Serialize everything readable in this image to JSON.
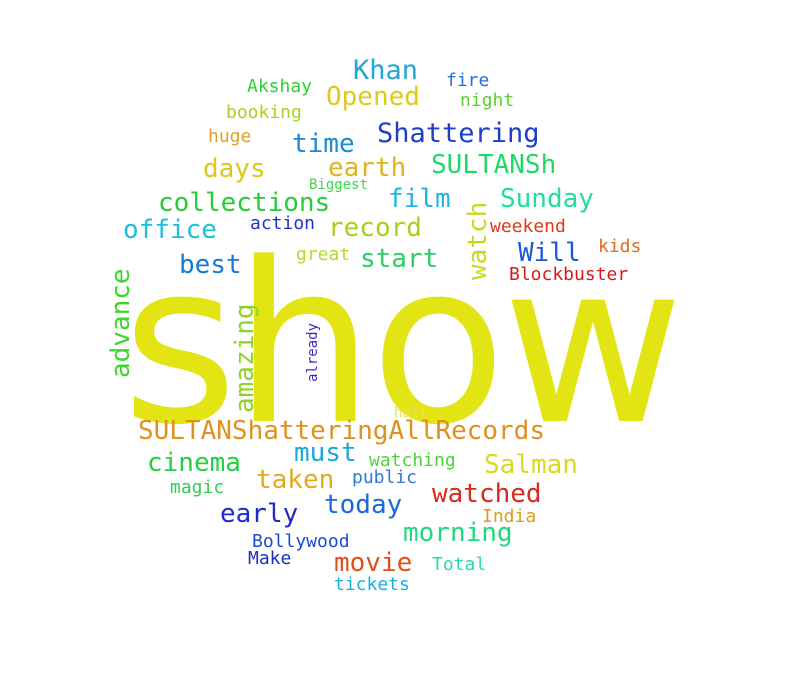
{
  "words": [
    {
      "text": "show",
      "color": "#e2e414"
    },
    {
      "text": "Khan",
      "color": "#1fa8d8"
    },
    {
      "text": "fire",
      "color": "#2a6fd6"
    },
    {
      "text": "Akshay",
      "color": "#2ad232"
    },
    {
      "text": "Opened",
      "color": "#dccb1a"
    },
    {
      "text": "night",
      "color": "#5ad22c"
    },
    {
      "text": "booking",
      "color": "#a6d41e"
    },
    {
      "text": "huge",
      "color": "#e2a21c"
    },
    {
      "text": "time",
      "color": "#1a8ad6"
    },
    {
      "text": "Shattering",
      "color": "#1f3ec8"
    },
    {
      "text": "days",
      "color": "#dcc81a"
    },
    {
      "text": "earth",
      "color": "#e0b21c"
    },
    {
      "text": "SULTANSh",
      "color": "#20d868"
    },
    {
      "text": "Biggest",
      "color": "#3ad84a"
    },
    {
      "text": "collections",
      "color": "#28cc3a"
    },
    {
      "text": "film",
      "color": "#1ab8dc"
    },
    {
      "text": "Sunday",
      "color": "#22dca0"
    },
    {
      "text": "watch",
      "color": "#c8d81c"
    },
    {
      "text": "office",
      "color": "#1ac0dc"
    },
    {
      "text": "action",
      "color": "#2232c8"
    },
    {
      "text": "record",
      "color": "#a6d01c"
    },
    {
      "text": "weekend",
      "color": "#dc3a1a"
    },
    {
      "text": "Will",
      "color": "#1a5ad6"
    },
    {
      "text": "best",
      "color": "#1a7ad6"
    },
    {
      "text": "great",
      "color": "#b0da30"
    },
    {
      "text": "start",
      "color": "#28d064"
    },
    {
      "text": "kids",
      "color": "#e46a1a"
    },
    {
      "text": "advance",
      "color": "#3ad82a"
    },
    {
      "text": "Blockbuster",
      "color": "#d61a1a"
    },
    {
      "text": "amazing",
      "color": "#8ed428"
    },
    {
      "text": "already",
      "color": "#3a2ac8"
    },
    {
      "text": "half",
      "color": "#e8e050"
    },
    {
      "text": "SULTANShatteringAllRecords",
      "color": "#e09020"
    },
    {
      "text": "cinema",
      "color": "#22d040"
    },
    {
      "text": "must",
      "color": "#1aa8d8"
    },
    {
      "text": "watching",
      "color": "#4ad436"
    },
    {
      "text": "Salman",
      "color": "#d8da1e"
    },
    {
      "text": "taken",
      "color": "#e2aa1c"
    },
    {
      "text": "magic",
      "color": "#28d058"
    },
    {
      "text": "public",
      "color": "#2a7ad6"
    },
    {
      "text": "today",
      "color": "#1a6ad6"
    },
    {
      "text": "watched",
      "color": "#d82a1a"
    },
    {
      "text": "early",
      "color": "#1f2ac8"
    },
    {
      "text": "India",
      "color": "#e09a1c"
    },
    {
      "text": "morning",
      "color": "#20d880"
    },
    {
      "text": "Bollywood",
      "color": "#1a4ad0"
    },
    {
      "text": "movie",
      "color": "#e0501a"
    },
    {
      "text": "Make",
      "color": "#1a30c0"
    },
    {
      "text": "Total",
      "color": "#28dcb0"
    },
    {
      "text": "tickets",
      "color": "#1ab0dc"
    }
  ]
}
